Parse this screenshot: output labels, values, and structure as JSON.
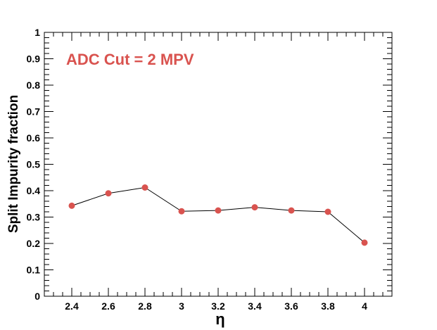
{
  "chart_data": {
    "type": "line",
    "title": "",
    "xlabel": "η",
    "ylabel": "Split Impurity fraction",
    "xlim": [
      2.25,
      4.15
    ],
    "ylim": [
      0,
      1
    ],
    "grid": false,
    "x_ticks": [
      "2.4",
      "2.6",
      "2.8",
      "3",
      "3.2",
      "3.4",
      "3.6",
      "3.8",
      "4"
    ],
    "y_ticks": [
      "0",
      "0.1",
      "0.2",
      "0.3",
      "0.4",
      "0.5",
      "0.6",
      "0.7",
      "0.8",
      "0.9",
      "1"
    ],
    "annotation": "ADC Cut = 2 MPV",
    "series": [
      {
        "x": [
          2.4,
          2.6,
          2.8,
          3.0,
          3.2,
          3.4,
          3.6,
          3.8,
          4.0
        ],
        "y": [
          0.343,
          0.39,
          0.412,
          0.322,
          0.325,
          0.337,
          0.325,
          0.32,
          0.203
        ],
        "marker_color": "#d9534f",
        "line_color": "#000000"
      }
    ]
  }
}
